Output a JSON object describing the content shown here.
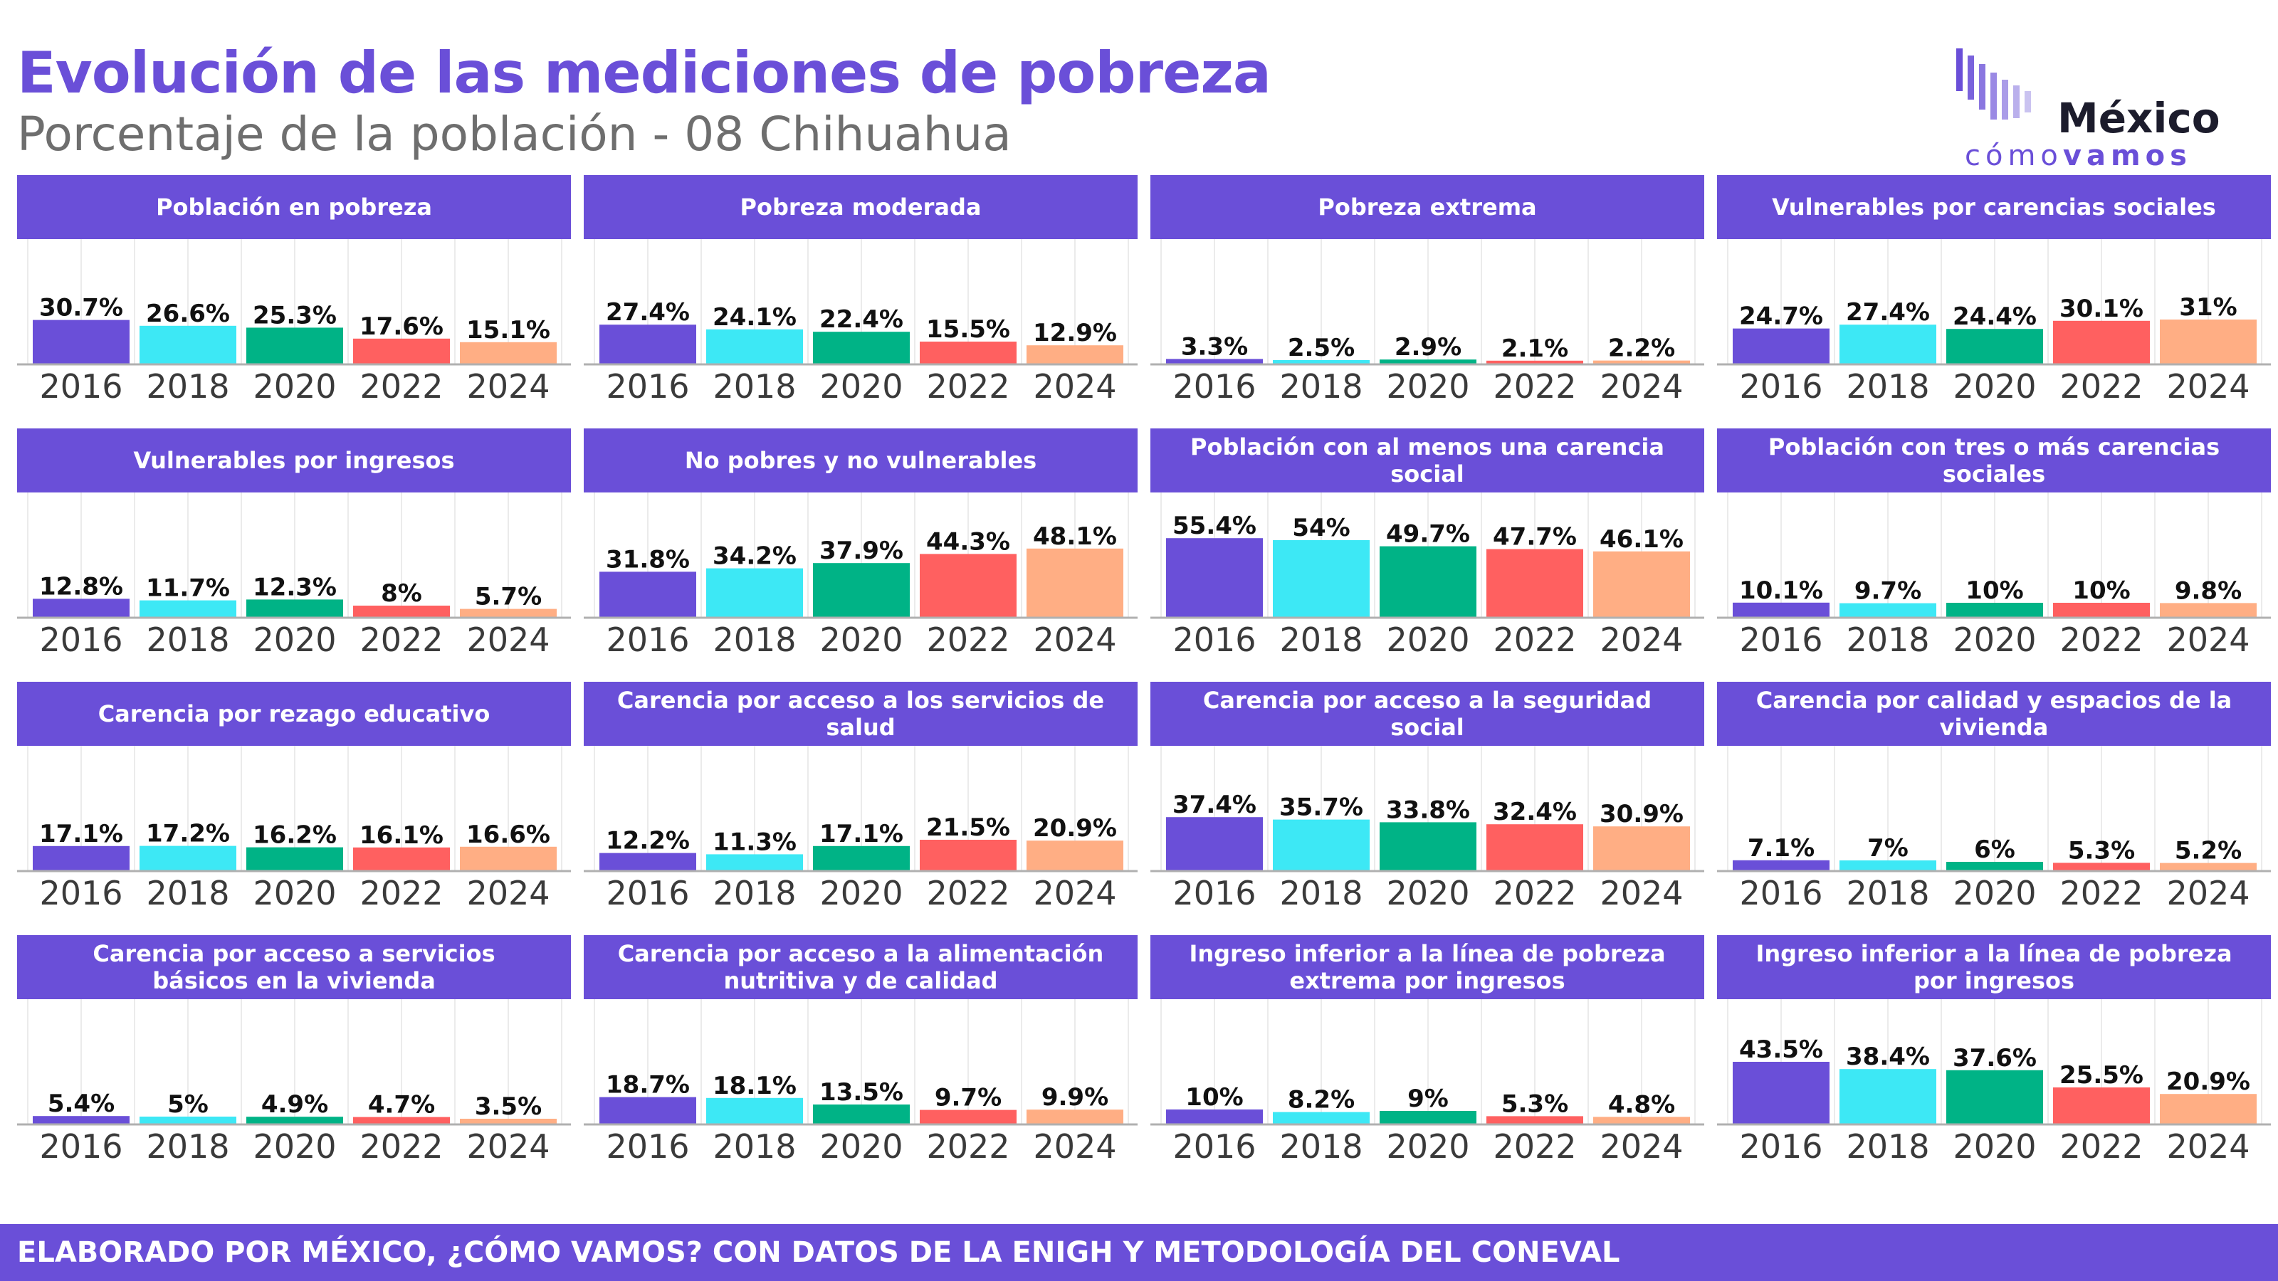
{
  "header": {
    "title": "Evolución de las mediciones de pobreza",
    "subtitle": "Porcentaje de la población - 08 Chihuahua"
  },
  "logo": {
    "word": "México",
    "sub_light": "cómo",
    "sub_bold": "vamos"
  },
  "footer": {
    "text": "ELABORADO POR MÉXICO, ¿CÓMO VAMOS? CON DATOS DE LA ENIGH Y METODOLOGÍA DEL CONEVAL"
  },
  "colors": {
    "accent": "#6a4fd8",
    "years": [
      "#6a4fd8",
      "#3de8f5",
      "#00b386",
      "#ff6060",
      "#ffae84"
    ]
  },
  "chart_data": [
    {
      "type": "bar",
      "title": "Población en pobreza",
      "categories": [
        "2016",
        "2018",
        "2020",
        "2022",
        "2024"
      ],
      "values": [
        30.7,
        26.6,
        25.3,
        17.6,
        15.1
      ],
      "labels": [
        "30.7%",
        "26.6%",
        "25.3%",
        "17.6%",
        "15.1%"
      ],
      "ylim": [
        0,
        60
      ]
    },
    {
      "type": "bar",
      "title": "Pobreza moderada",
      "categories": [
        "2016",
        "2018",
        "2020",
        "2022",
        "2024"
      ],
      "values": [
        27.4,
        24.1,
        22.4,
        15.5,
        12.9
      ],
      "labels": [
        "27.4%",
        "24.1%",
        "22.4%",
        "15.5%",
        "12.9%"
      ],
      "ylim": [
        0,
        60
      ]
    },
    {
      "type": "bar",
      "title": "Pobreza extrema",
      "categories": [
        "2016",
        "2018",
        "2020",
        "2022",
        "2024"
      ],
      "values": [
        3.3,
        2.5,
        2.9,
        2.1,
        2.2
      ],
      "labels": [
        "3.3%",
        "2.5%",
        "2.9%",
        "2.1%",
        "2.2%"
      ],
      "ylim": [
        0,
        60
      ]
    },
    {
      "type": "bar",
      "title": "Vulnerables por carencias sociales",
      "categories": [
        "2016",
        "2018",
        "2020",
        "2022",
        "2024"
      ],
      "values": [
        24.7,
        27.4,
        24.4,
        30.1,
        31
      ],
      "labels": [
        "24.7%",
        "27.4%",
        "24.4%",
        "30.1%",
        "31%"
      ],
      "ylim": [
        0,
        60
      ]
    },
    {
      "type": "bar",
      "title": "Vulnerables por ingresos",
      "categories": [
        "2016",
        "2018",
        "2020",
        "2022",
        "2024"
      ],
      "values": [
        12.8,
        11.7,
        12.3,
        8,
        5.7
      ],
      "labels": [
        "12.8%",
        "11.7%",
        "12.3%",
        "8%",
        "5.7%"
      ],
      "ylim": [
        0,
        60
      ]
    },
    {
      "type": "bar",
      "title": "No pobres y no vulnerables",
      "categories": [
        "2016",
        "2018",
        "2020",
        "2022",
        "2024"
      ],
      "values": [
        31.8,
        34.2,
        37.9,
        44.3,
        48.1
      ],
      "labels": [
        "31.8%",
        "34.2%",
        "37.9%",
        "44.3%",
        "48.1%"
      ],
      "ylim": [
        0,
        60
      ]
    },
    {
      "type": "bar",
      "title": "Población con al menos una carencia social",
      "categories": [
        "2016",
        "2018",
        "2020",
        "2022",
        "2024"
      ],
      "values": [
        55.4,
        54,
        49.7,
        47.7,
        46.1
      ],
      "labels": [
        "55.4%",
        "54%",
        "49.7%",
        "47.7%",
        "46.1%"
      ],
      "ylim": [
        0,
        60
      ]
    },
    {
      "type": "bar",
      "title": "Población con tres o más carencias sociales",
      "categories": [
        "2016",
        "2018",
        "2020",
        "2022",
        "2024"
      ],
      "values": [
        10.1,
        9.7,
        10,
        10,
        9.8
      ],
      "labels": [
        "10.1%",
        "9.7%",
        "10%",
        "10%",
        "9.8%"
      ],
      "ylim": [
        0,
        60
      ]
    },
    {
      "type": "bar",
      "title": "Carencia por rezago educativo",
      "categories": [
        "2016",
        "2018",
        "2020",
        "2022",
        "2024"
      ],
      "values": [
        17.1,
        17.2,
        16.2,
        16.1,
        16.6
      ],
      "labels": [
        "17.1%",
        "17.2%",
        "16.2%",
        "16.1%",
        "16.6%"
      ],
      "ylim": [
        0,
        60
      ]
    },
    {
      "type": "bar",
      "title": "Carencia por acceso a los servicios de salud",
      "categories": [
        "2016",
        "2018",
        "2020",
        "2022",
        "2024"
      ],
      "values": [
        12.2,
        11.3,
        17.1,
        21.5,
        20.9
      ],
      "labels": [
        "12.2%",
        "11.3%",
        "17.1%",
        "21.5%",
        "20.9%"
      ],
      "ylim": [
        0,
        60
      ]
    },
    {
      "type": "bar",
      "title": "Carencia por acceso a la seguridad social",
      "categories": [
        "2016",
        "2018",
        "2020",
        "2022",
        "2024"
      ],
      "values": [
        37.4,
        35.7,
        33.8,
        32.4,
        30.9
      ],
      "labels": [
        "37.4%",
        "35.7%",
        "33.8%",
        "32.4%",
        "30.9%"
      ],
      "ylim": [
        0,
        60
      ]
    },
    {
      "type": "bar",
      "title": "Carencia por calidad y espacios de la vivienda",
      "categories": [
        "2016",
        "2018",
        "2020",
        "2022",
        "2024"
      ],
      "values": [
        7.1,
        7,
        6,
        5.3,
        5.2
      ],
      "labels": [
        "7.1%",
        "7%",
        "6%",
        "5.3%",
        "5.2%"
      ],
      "ylim": [
        0,
        60
      ]
    },
    {
      "type": "bar",
      "title": "Carencia por acceso a servicios básicos en la vivienda",
      "categories": [
        "2016",
        "2018",
        "2020",
        "2022",
        "2024"
      ],
      "values": [
        5.4,
        5,
        4.9,
        4.7,
        3.5
      ],
      "labels": [
        "5.4%",
        "5%",
        "4.9%",
        "4.7%",
        "3.5%"
      ],
      "ylim": [
        0,
        60
      ]
    },
    {
      "type": "bar",
      "title": "Carencia por acceso a la alimentación nutritiva y de calidad",
      "categories": [
        "2016",
        "2018",
        "2020",
        "2022",
        "2024"
      ],
      "values": [
        18.7,
        18.1,
        13.5,
        9.7,
        9.9
      ],
      "labels": [
        "18.7%",
        "18.1%",
        "13.5%",
        "9.7%",
        "9.9%"
      ],
      "ylim": [
        0,
        60
      ]
    },
    {
      "type": "bar",
      "title": "Ingreso inferior a la línea de pobreza extrema por ingresos",
      "categories": [
        "2016",
        "2018",
        "2020",
        "2022",
        "2024"
      ],
      "values": [
        10,
        8.2,
        9,
        5.3,
        4.8
      ],
      "labels": [
        "10%",
        "8.2%",
        "9%",
        "5.3%",
        "4.8%"
      ],
      "ylim": [
        0,
        60
      ]
    },
    {
      "type": "bar",
      "title": "Ingreso inferior a la línea de pobreza por ingresos",
      "categories": [
        "2016",
        "2018",
        "2020",
        "2022",
        "2024"
      ],
      "values": [
        43.5,
        38.4,
        37.6,
        25.5,
        20.9
      ],
      "labels": [
        "43.5%",
        "38.4%",
        "37.6%",
        "25.5%",
        "20.9%"
      ],
      "ylim": [
        0,
        60
      ]
    }
  ]
}
